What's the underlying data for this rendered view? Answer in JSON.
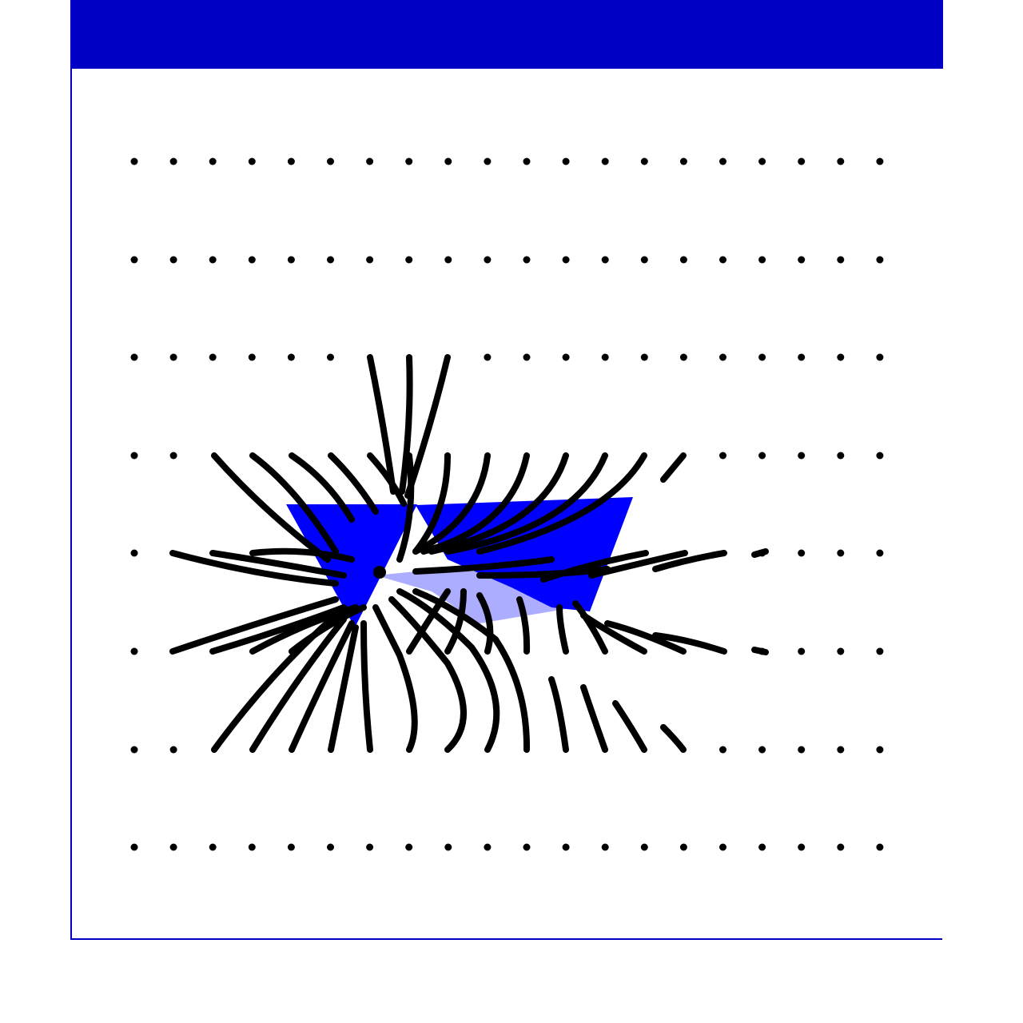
{
  "window": {
    "title": "",
    "frame_color": "#0000c4",
    "title_bar_color": "#0000c4"
  },
  "scene": {
    "description_hidden": true,
    "dot_color": "#000000",
    "trail_color": "#000000",
    "shape_color": "#0000ff",
    "grid_rows": 8,
    "grid_cols": 20
  }
}
